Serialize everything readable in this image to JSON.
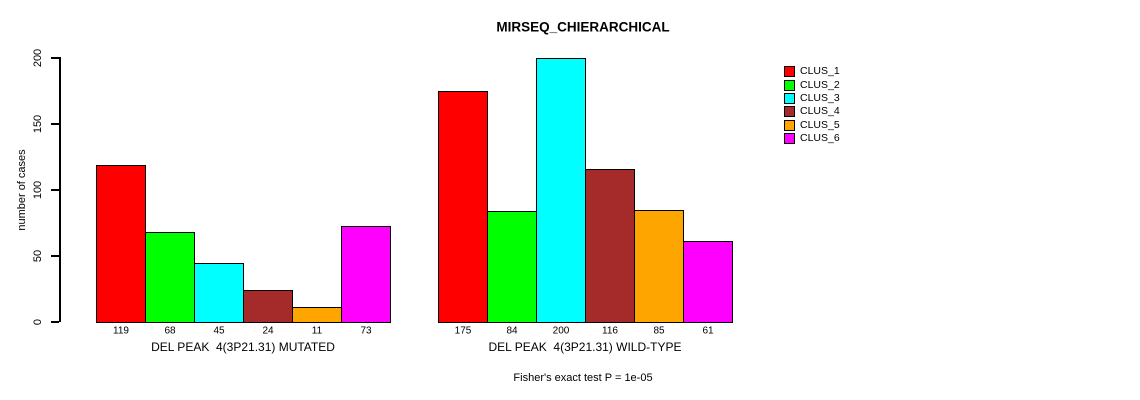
{
  "chart_data": {
    "type": "bar",
    "title": "MIRSEQ_CHIERARCHICAL",
    "ylabel": "number of cases",
    "xlabel": "",
    "ylim": [
      0,
      200
    ],
    "yticks": [
      0,
      50,
      100,
      150,
      200
    ],
    "grid": false,
    "legend_position": "right",
    "categories": [
      "DEL PEAK  4(3P21.31) MUTATED",
      "DEL PEAK  4(3P21.31) WILD-TYPE"
    ],
    "series": [
      {
        "name": "CLUS_1",
        "color": "#FF0000",
        "values": [
          119,
          175
        ]
      },
      {
        "name": "CLUS_2",
        "color": "#00FF00",
        "values": [
          68,
          84
        ]
      },
      {
        "name": "CLUS_3",
        "color": "#00FFFF",
        "values": [
          45,
          200
        ]
      },
      {
        "name": "CLUS_4",
        "color": "#A52A2A",
        "values": [
          24,
          116
        ]
      },
      {
        "name": "CLUS_5",
        "color": "#FFA500",
        "values": [
          11,
          85
        ]
      },
      {
        "name": "CLUS_6",
        "color": "#FF00FF",
        "values": [
          73,
          61
        ]
      }
    ],
    "footnote": "Fisher's exact test P = 1e-05"
  }
}
